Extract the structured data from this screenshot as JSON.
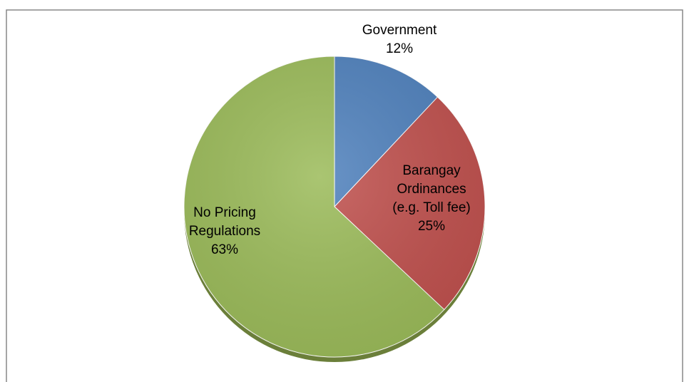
{
  "chart_data": {
    "type": "pie",
    "categories": [
      "Government",
      "Barangay Ordinances (e.g. Toll fee)",
      "No Pricing Regulations"
    ],
    "values": [
      12,
      25,
      63
    ],
    "value_labels": [
      "12%",
      "25%",
      "63%"
    ],
    "colors": [
      "#4f81bd",
      "#c0504d",
      "#9bbb59"
    ]
  }
}
